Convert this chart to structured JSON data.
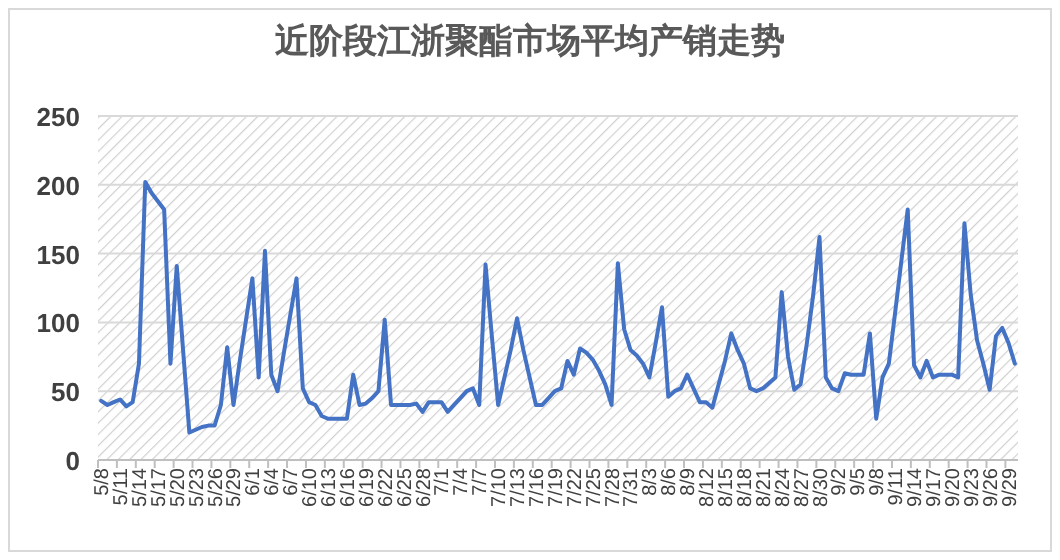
{
  "chart_data": {
    "type": "line",
    "title": "近阶段江浙聚酯市场平均产销走势",
    "categories": [
      "5/8",
      null,
      null,
      "5/11",
      null,
      null,
      "5/14",
      null,
      null,
      "5/17",
      null,
      null,
      "5/20",
      null,
      null,
      "5/23",
      null,
      null,
      "5/26",
      null,
      null,
      "5/29",
      null,
      null,
      "6/1",
      null,
      null,
      "6/4",
      null,
      null,
      "6/7",
      null,
      null,
      "6/10",
      null,
      null,
      "6/13",
      null,
      null,
      "6/16",
      null,
      null,
      "6/19",
      null,
      null,
      "6/22",
      null,
      null,
      "6/25",
      null,
      null,
      "6/28",
      null,
      null,
      "7/1",
      null,
      null,
      "7/4",
      null,
      null,
      "7/7",
      null,
      null,
      "7/10",
      null,
      null,
      "7/13",
      null,
      null,
      "7/16",
      null,
      null,
      "7/19",
      null,
      null,
      "7/22",
      null,
      null,
      "7/25",
      null,
      null,
      "7/28",
      null,
      null,
      "7/31",
      null,
      null,
      "8/3",
      null,
      null,
      "8/6",
      null,
      null,
      "8/9",
      null,
      null,
      "8/12",
      null,
      null,
      "8/15",
      null,
      null,
      "8/18",
      null,
      null,
      "8/21",
      null,
      null,
      "8/24",
      null,
      null,
      "8/27",
      null,
      null,
      "8/30",
      null,
      null,
      "9/2",
      null,
      null,
      "9/5",
      null,
      null,
      "9/8",
      null,
      null,
      "9/11",
      null,
      null,
      "9/14",
      null,
      null,
      "9/17",
      null,
      null,
      "9/20",
      null,
      null,
      "9/23",
      null,
      null,
      "9/26",
      null,
      null,
      "9/29",
      null
    ],
    "values": [
      43,
      40,
      42,
      44,
      39,
      42,
      70,
      202,
      194,
      188,
      182,
      70,
      141,
      80,
      20,
      22,
      24,
      25,
      25,
      40,
      82,
      40,
      72,
      102,
      132,
      60,
      152,
      62,
      50,
      78,
      105,
      132,
      52,
      42,
      40,
      32,
      30,
      30,
      30,
      30,
      62,
      40,
      41,
      45,
      50,
      102,
      40,
      40,
      40,
      40,
      41,
      35,
      42,
      42,
      42,
      35,
      40,
      45,
      50,
      52,
      40,
      142,
      90,
      40,
      60,
      80,
      103,
      80,
      60,
      40,
      40,
      45,
      50,
      52,
      72,
      62,
      81,
      78,
      73,
      65,
      55,
      40,
      143,
      95,
      80,
      76,
      70,
      60,
      85,
      111,
      46,
      50,
      52,
      62,
      52,
      42,
      42,
      38,
      55,
      72,
      92,
      80,
      70,
      52,
      50,
      52,
      56,
      60,
      122,
      75,
      51,
      55,
      85,
      120,
      162,
      60,
      52,
      50,
      63,
      62,
      62,
      62,
      92,
      30,
      60,
      70,
      107,
      145,
      182,
      69,
      60,
      72,
      60,
      62,
      62,
      62,
      60,
      172,
      120,
      87,
      70,
      51,
      90,
      96,
      85,
      70
    ],
    "color": "#4472c4",
    "ylim": [
      0,
      250
    ],
    "yticks": [
      0,
      50,
      100,
      150,
      200,
      250
    ],
    "grid": "y"
  }
}
